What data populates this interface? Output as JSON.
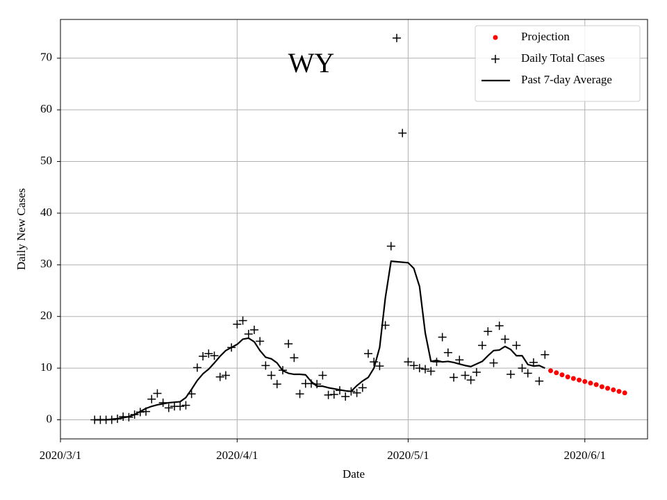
{
  "chart_data": {
    "type": "scatter",
    "title": "WY",
    "xlabel": "Date",
    "ylabel": "Daily New Cases",
    "x": [
      "2020/3/7",
      "2020/3/8",
      "2020/3/9",
      "2020/3/10",
      "2020/3/11",
      "2020/3/12",
      "2020/3/13",
      "2020/3/14",
      "2020/3/15",
      "2020/3/16",
      "2020/3/17",
      "2020/3/18",
      "2020/3/19",
      "2020/3/20",
      "2020/3/21",
      "2020/3/22",
      "2020/3/23",
      "2020/3/24",
      "2020/3/25",
      "2020/3/26",
      "2020/3/27",
      "2020/3/28",
      "2020/3/29",
      "2020/3/30",
      "2020/3/31",
      "2020/4/1",
      "2020/4/2",
      "2020/4/3",
      "2020/4/4",
      "2020/4/5",
      "2020/4/6",
      "2020/4/7",
      "2020/4/8",
      "2020/4/9",
      "2020/4/10",
      "2020/4/11",
      "2020/4/12",
      "2020/4/13",
      "2020/4/14",
      "2020/4/15",
      "2020/4/16",
      "2020/4/17",
      "2020/4/18",
      "2020/4/19",
      "2020/4/20",
      "2020/4/21",
      "2020/4/22",
      "2020/4/23",
      "2020/4/24",
      "2020/4/25",
      "2020/4/26",
      "2020/4/27",
      "2020/4/28",
      "2020/4/29",
      "2020/4/30",
      "2020/5/1",
      "2020/5/2",
      "2020/5/3",
      "2020/5/4",
      "2020/5/5",
      "2020/5/6",
      "2020/5/7",
      "2020/5/8",
      "2020/5/9",
      "2020/5/10",
      "2020/5/11",
      "2020/5/12",
      "2020/5/13",
      "2020/5/14",
      "2020/5/15",
      "2020/5/16",
      "2020/5/17",
      "2020/5/18",
      "2020/5/19",
      "2020/5/20",
      "2020/5/21",
      "2020/5/22",
      "2020/5/23",
      "2020/5/24",
      "2020/5/25"
    ],
    "series": [
      {
        "name": "Projection",
        "style": "dot",
        "color": "#ff0000",
        "x": [
          "2020/5/26",
          "2020/5/27",
          "2020/5/28",
          "2020/5/29",
          "2020/5/30",
          "2020/5/31",
          "2020/6/1",
          "2020/6/2",
          "2020/6/3",
          "2020/6/4",
          "2020/6/5",
          "2020/6/6",
          "2020/6/7",
          "2020/6/8"
        ],
        "values": [
          9.5,
          9.1,
          8.7,
          8.3,
          8.0,
          7.7,
          7.4,
          7.1,
          6.8,
          6.4,
          6.1,
          5.8,
          5.5,
          5.2
        ]
      },
      {
        "name": "Daily Total Cases",
        "style": "plus",
        "color": "#000000",
        "values": [
          0,
          0,
          0,
          0,
          0.2,
          0.6,
          0.5,
          1.0,
          1.5,
          1.6,
          4.0,
          5.1,
          3.3,
          2.3,
          2.6,
          2.6,
          2.8,
          5.0,
          10.1,
          12.3,
          12.8,
          12.4,
          8.3,
          8.6,
          14.0,
          18.5,
          19.2,
          16.6,
          17.4,
          15.2,
          10.5,
          8.6,
          6.9,
          9.6,
          14.7,
          12.0,
          5.0,
          7.0,
          7.0,
          6.9,
          8.6,
          4.8,
          4.9,
          5.7,
          4.5,
          5.5,
          5.2,
          6.2,
          12.8,
          11.2,
          10.4,
          18.3,
          33.6,
          73.9,
          55.5,
          11.2,
          10.5,
          10.0,
          9.8,
          9.4,
          11.2,
          16.0,
          13.0,
          8.2,
          11.6,
          8.6,
          7.7,
          9.2,
          14.4,
          17.1,
          11.0,
          18.2,
          15.6,
          8.8,
          14.4,
          10.0,
          9.0,
          11.1,
          7.5,
          12.6
        ]
      },
      {
        "name": "Past 7-day Average",
        "style": "line",
        "color": "#000000",
        "values": [
          0,
          0,
          0,
          0.1,
          0.2,
          0.4,
          0.6,
          1.0,
          1.6,
          2.2,
          2.6,
          2.9,
          3.1,
          3.3,
          3.4,
          3.5,
          4.3,
          5.9,
          7.6,
          8.9,
          9.8,
          11.0,
          12.3,
          13.4,
          14.0,
          14.6,
          15.6,
          15.8,
          15.1,
          13.4,
          12.1,
          11.8,
          11.0,
          9.5,
          9.0,
          8.8,
          8.8,
          8.7,
          7.4,
          6.5,
          6.5,
          6.2,
          6.0,
          5.8,
          5.6,
          5.5,
          6.6,
          7.5,
          8.2,
          10.0,
          14.0,
          23.6,
          30.7,
          30.6,
          30.5,
          30.4,
          29.3,
          25.8,
          16.8,
          11.3,
          11.5,
          11.2,
          11.3,
          11.1,
          10.8,
          10.5,
          10.3,
          10.8,
          11.3,
          12.4,
          13.4,
          13.5,
          14.2,
          13.6,
          12.4,
          12.4,
          10.7,
          10.4,
          10.5,
          10.0
        ]
      }
    ],
    "xlim": [
      "2020/3/1",
      "2020/6/12"
    ],
    "xticks": [
      "2020/3/1",
      "2020/4/1",
      "2020/5/1",
      "2020/6/1"
    ],
    "ylim": [
      -3.7,
      77.5
    ],
    "yticks": [
      0,
      10,
      20,
      30,
      40,
      50,
      60,
      70
    ],
    "grid": true,
    "legend": "upper right"
  }
}
